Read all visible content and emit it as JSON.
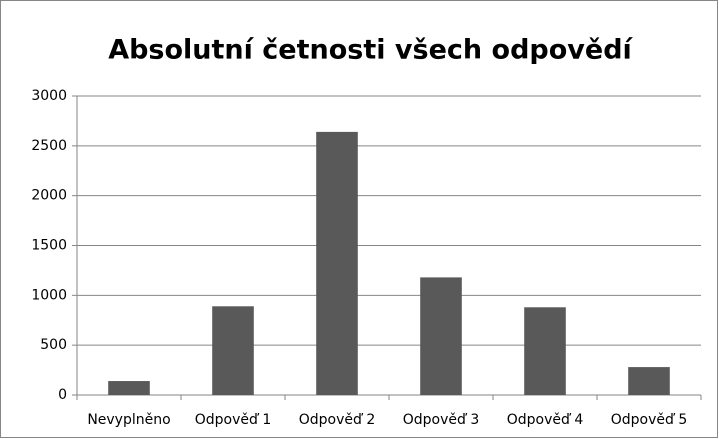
{
  "chart_data": {
    "type": "bar",
    "title": "Absolutní četnosti všech odpovědí",
    "categories": [
      "Nevyplněno",
      "Odpověď 1",
      "Odpověď 2",
      "Odpověď 3",
      "Odpověď 4",
      "Odpověď 5"
    ],
    "values": [
      140,
      890,
      2640,
      1180,
      880,
      280
    ],
    "color": "#595959",
    "ylim": [
      0,
      3000
    ],
    "yticks": [
      0,
      500,
      1000,
      1500,
      2000,
      2500,
      3000
    ],
    "grid": true
  }
}
